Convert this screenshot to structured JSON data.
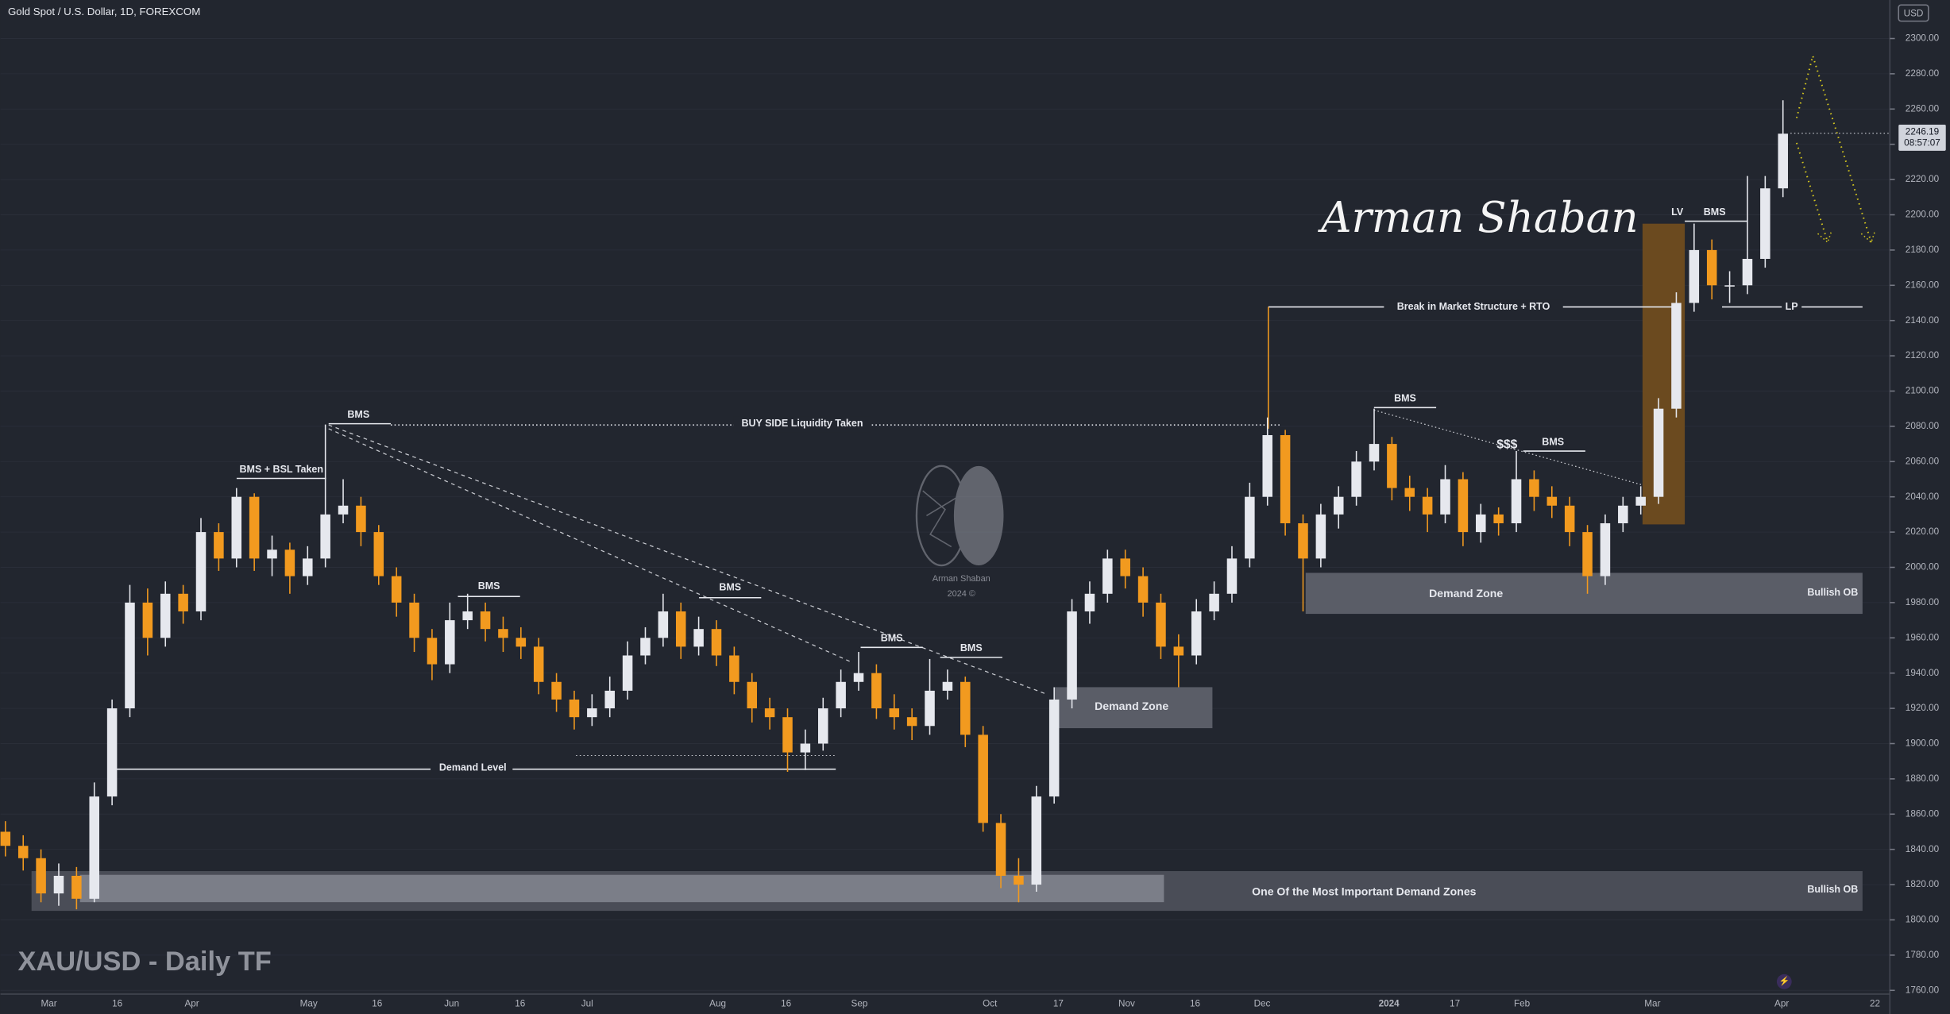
{
  "chart_data": {
    "type": "candlestick",
    "header": "Gold Spot / U.S. Dollar, 1D, FOREXCOM",
    "subtitle": "XAU/USD - Daily TF",
    "currency": "USD",
    "last_price": 2246.19,
    "countdown": "08:57:07",
    "signature": "Arman Shaban",
    "watermark": [
      "Arman Shaban",
      "2024 ©"
    ],
    "up_color": "#e6e8ee",
    "down_color": "#f29a1f",
    "ylim": [
      1760,
      2300
    ],
    "yticks": [
      {
        "value": 1760,
        "label": "1760.00"
      },
      {
        "value": 1780,
        "label": "1780.00"
      },
      {
        "value": 1800,
        "label": "1800.00"
      },
      {
        "value": 1820,
        "label": "1820.00"
      },
      {
        "value": 1840,
        "label": "1840.00"
      },
      {
        "value": 1860,
        "label": "1860.00"
      },
      {
        "value": 1880,
        "label": "1880.00"
      },
      {
        "value": 1900,
        "label": "1900.00"
      },
      {
        "value": 1920,
        "label": "1920.00"
      },
      {
        "value": 1940,
        "label": "1940.00"
      },
      {
        "value": 1960,
        "label": "1960.00"
      },
      {
        "value": 1980,
        "label": "1980.00"
      },
      {
        "value": 2000,
        "label": "2000.00"
      },
      {
        "value": 2020,
        "label": "2020.00"
      },
      {
        "value": 2040,
        "label": "2040.00"
      },
      {
        "value": 2060,
        "label": "2060.00"
      },
      {
        "value": 2080,
        "label": "2080.00"
      },
      {
        "value": 2100,
        "label": "2100.00"
      },
      {
        "value": 2120,
        "label": "2120.00"
      },
      {
        "value": 2140,
        "label": "2140.00"
      },
      {
        "value": 2160,
        "label": "2160.00"
      },
      {
        "value": 2180,
        "label": "2180.00"
      },
      {
        "value": 2200,
        "label": "2200.00"
      },
      {
        "value": 2220,
        "label": "2220.00"
      },
      {
        "value": 2240,
        "label": "2240.00"
      },
      {
        "value": 2260,
        "label": "2260.00"
      },
      {
        "value": 2280,
        "label": "2280.00"
      },
      {
        "value": 2300,
        "label": "2300.00"
      }
    ],
    "xticks": [
      "Mar",
      "16",
      "Apr",
      "May",
      "16",
      "Jun",
      "16",
      "Jul",
      "Aug",
      "16",
      "Sep",
      "Oct",
      "17",
      "Nov",
      "16",
      "Dec",
      "2024",
      "17",
      "Feb",
      "Mar",
      "Apr",
      "22"
    ],
    "annotations": [
      "BMS + BSL Taken",
      "BMS",
      "BUY SIDE Liquidity Taken",
      "BMS",
      "BMS",
      "BMS",
      "BMS",
      "Demand Level",
      "Demand Zone",
      "One Of the Most Important Demand Zones",
      "Bullish OB",
      "Demand Zone",
      "Bullish OB",
      "Break in Market Structure + RTO",
      "BMS",
      "$$$",
      "BMS",
      "LV",
      "BMS",
      "LP"
    ],
    "ohlc": [
      [
        1850,
        1856,
        1836,
        1842
      ],
      [
        1842,
        1848,
        1828,
        1835
      ],
      [
        1835,
        1840,
        1810,
        1815
      ],
      [
        1815,
        1832,
        1808,
        1825
      ],
      [
        1825,
        1830,
        1806,
        1812
      ],
      [
        1812,
        1878,
        1810,
        1870
      ],
      [
        1870,
        1925,
        1865,
        1920
      ],
      [
        1920,
        1990,
        1915,
        1980
      ],
      [
        1980,
        1988,
        1950,
        1960
      ],
      [
        1960,
        1992,
        1955,
        1985
      ],
      [
        1985,
        1990,
        1968,
        1975
      ],
      [
        1975,
        2028,
        1970,
        2020
      ],
      [
        2020,
        2025,
        1998,
        2005
      ],
      [
        2005,
        2045,
        2000,
        2040
      ],
      [
        2040,
        2042,
        1998,
        2005
      ],
      [
        2005,
        2018,
        1995,
        2010
      ],
      [
        2010,
        2014,
        1985,
        1995
      ],
      [
        1995,
        2012,
        1990,
        2005
      ],
      [
        2005,
        2081,
        2000,
        2030
      ],
      [
        2030,
        2050,
        2025,
        2035
      ],
      [
        2035,
        2040,
        2012,
        2020
      ],
      [
        2020,
        2024,
        1990,
        1995
      ],
      [
        1995,
        2000,
        1972,
        1980
      ],
      [
        1980,
        1985,
        1952,
        1960
      ],
      [
        1960,
        1965,
        1936,
        1945
      ],
      [
        1945,
        1980,
        1940,
        1970
      ],
      [
        1970,
        1985,
        1965,
        1975
      ],
      [
        1975,
        1980,
        1958,
        1965
      ],
      [
        1965,
        1972,
        1952,
        1960
      ],
      [
        1960,
        1966,
        1948,
        1955
      ],
      [
        1955,
        1960,
        1928,
        1935
      ],
      [
        1935,
        1940,
        1918,
        1925
      ],
      [
        1925,
        1930,
        1908,
        1915
      ],
      [
        1915,
        1928,
        1910,
        1920
      ],
      [
        1920,
        1938,
        1915,
        1930
      ],
      [
        1930,
        1958,
        1925,
        1950
      ],
      [
        1950,
        1966,
        1945,
        1960
      ],
      [
        1960,
        1985,
        1955,
        1975
      ],
      [
        1975,
        1980,
        1948,
        1955
      ],
      [
        1955,
        1972,
        1950,
        1965
      ],
      [
        1965,
        1970,
        1944,
        1950
      ],
      [
        1950,
        1955,
        1928,
        1935
      ],
      [
        1935,
        1940,
        1912,
        1920
      ],
      [
        1920,
        1926,
        1908,
        1915
      ],
      [
        1915,
        1920,
        1884,
        1895
      ],
      [
        1895,
        1908,
        1885,
        1900
      ],
      [
        1900,
        1926,
        1896,
        1920
      ],
      [
        1920,
        1942,
        1915,
        1935
      ],
      [
        1935,
        1952,
        1930,
        1940
      ],
      [
        1940,
        1945,
        1914,
        1920
      ],
      [
        1920,
        1928,
        1908,
        1915
      ],
      [
        1915,
        1920,
        1902,
        1910
      ],
      [
        1910,
        1948,
        1905,
        1930
      ],
      [
        1930,
        1942,
        1925,
        1935
      ],
      [
        1935,
        1938,
        1898,
        1905
      ],
      [
        1905,
        1910,
        1850,
        1855
      ],
      [
        1855,
        1860,
        1818,
        1825
      ],
      [
        1825,
        1835,
        1810,
        1820
      ],
      [
        1820,
        1876,
        1816,
        1870
      ],
      [
        1870,
        1932,
        1866,
        1925
      ],
      [
        1925,
        1982,
        1920,
        1975
      ],
      [
        1975,
        1992,
        1968,
        1985
      ],
      [
        1985,
        2010,
        1980,
        2005
      ],
      [
        2005,
        2010,
        1988,
        1995
      ],
      [
        1995,
        2000,
        1972,
        1980
      ],
      [
        1980,
        1985,
        1948,
        1955
      ],
      [
        1955,
        1962,
        1932,
        1950
      ],
      [
        1950,
        1982,
        1945,
        1975
      ],
      [
        1975,
        1992,
        1970,
        1985
      ],
      [
        1985,
        2012,
        1980,
        2005
      ],
      [
        2005,
        2048,
        2000,
        2040
      ],
      [
        2040,
        2085,
        2035,
        2075
      ],
      [
        2075,
        2078,
        2018,
        2025
      ],
      [
        2025,
        2030,
        1975,
        2005
      ],
      [
        2005,
        2036,
        2000,
        2030
      ],
      [
        2030,
        2046,
        2022,
        2040
      ],
      [
        2040,
        2066,
        2035,
        2060
      ],
      [
        2060,
        2090,
        2055,
        2070
      ],
      [
        2070,
        2074,
        2038,
        2045
      ],
      [
        2045,
        2052,
        2032,
        2040
      ],
      [
        2040,
        2045,
        2020,
        2030
      ],
      [
        2030,
        2058,
        2025,
        2050
      ],
      [
        2050,
        2054,
        2012,
        2020
      ],
      [
        2020,
        2036,
        2014,
        2030
      ],
      [
        2030,
        2034,
        2018,
        2025
      ],
      [
        2025,
        2066,
        2020,
        2050
      ],
      [
        2050,
        2055,
        2032,
        2040
      ],
      [
        2040,
        2046,
        2028,
        2035
      ],
      [
        2035,
        2040,
        2012,
        2020
      ],
      [
        2020,
        2024,
        1985,
        1995
      ],
      [
        1995,
        2030,
        1990,
        2025
      ],
      [
        2025,
        2040,
        2020,
        2035
      ],
      [
        2035,
        2046,
        2030,
        2040
      ],
      [
        2040,
        2096,
        2036,
        2090
      ],
      [
        2090,
        2156,
        2085,
        2150
      ],
      [
        2150,
        2195,
        2145,
        2180
      ],
      [
        2180,
        2186,
        2152,
        2160
      ],
      [
        2160,
        2168,
        2150,
        2160
      ],
      [
        2160,
        2222,
        2155,
        2175
      ],
      [
        2175,
        2222,
        2170,
        2215
      ],
      [
        2215,
        2265,
        2210,
        2246
      ]
    ]
  }
}
